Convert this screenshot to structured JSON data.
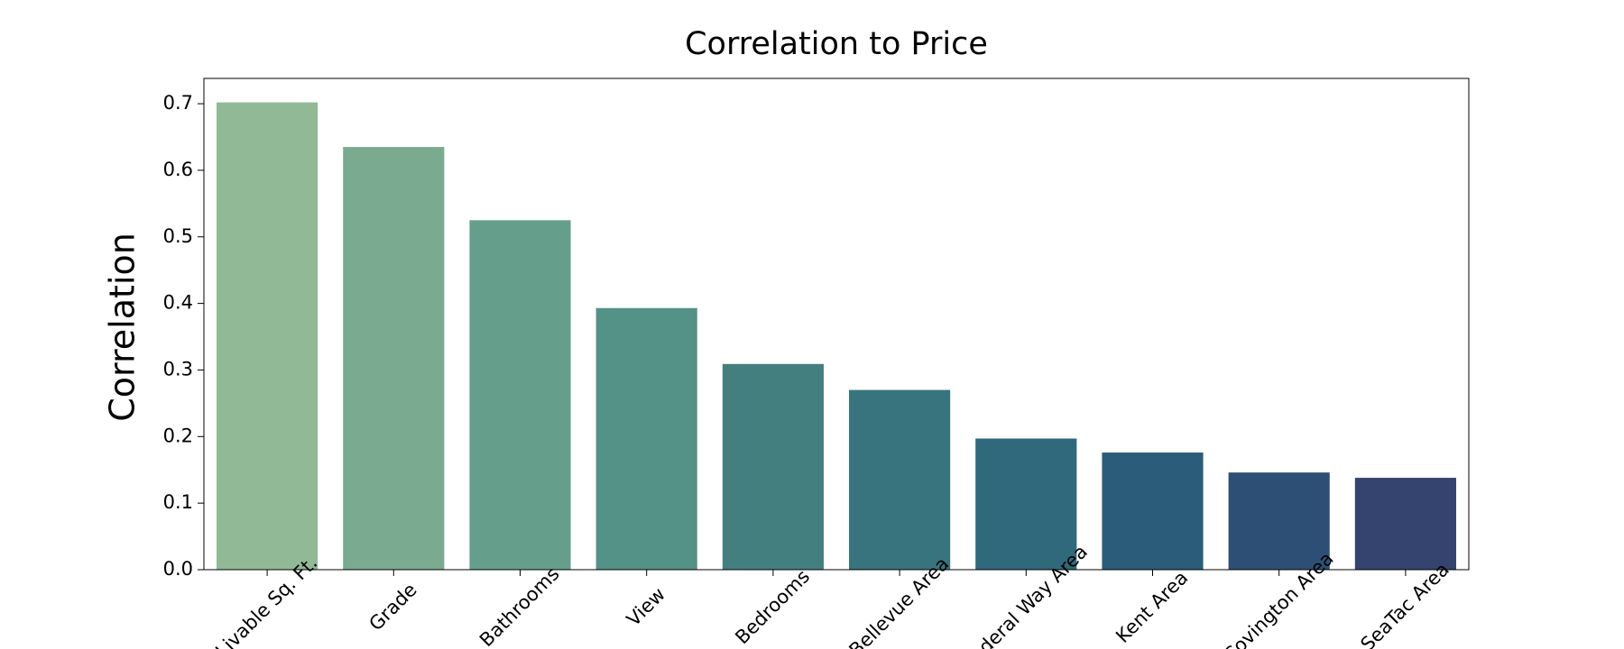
{
  "chart_data": {
    "type": "bar",
    "title": "Correlation to Price",
    "y_label": "Correlation",
    "categories": [
      "Livable Sq. Ft.",
      "Grade",
      "Bathrooms",
      "View",
      "Bedrooms",
      "Bellevue Area",
      "Federal Way Area",
      "Kent Area",
      "Covington Area",
      "SeaTac Area"
    ],
    "values": [
      0.702,
      0.635,
      0.525,
      0.393,
      0.309,
      0.27,
      0.197,
      0.176,
      0.146,
      0.138
    ],
    "colors": [
      "#91b995",
      "#7aaa90",
      "#659f8b",
      "#549187",
      "#447f80",
      "#38747e",
      "#30697c",
      "#2b5c7a",
      "#2e4f75",
      "#34446e"
    ],
    "ylim": [
      0,
      0.738
    ],
    "yticks": [
      {
        "value": 0,
        "label": "0.0"
      },
      0.1,
      0.2,
      0.3,
      0.4,
      0.5,
      0.6,
      0.7
    ]
  }
}
